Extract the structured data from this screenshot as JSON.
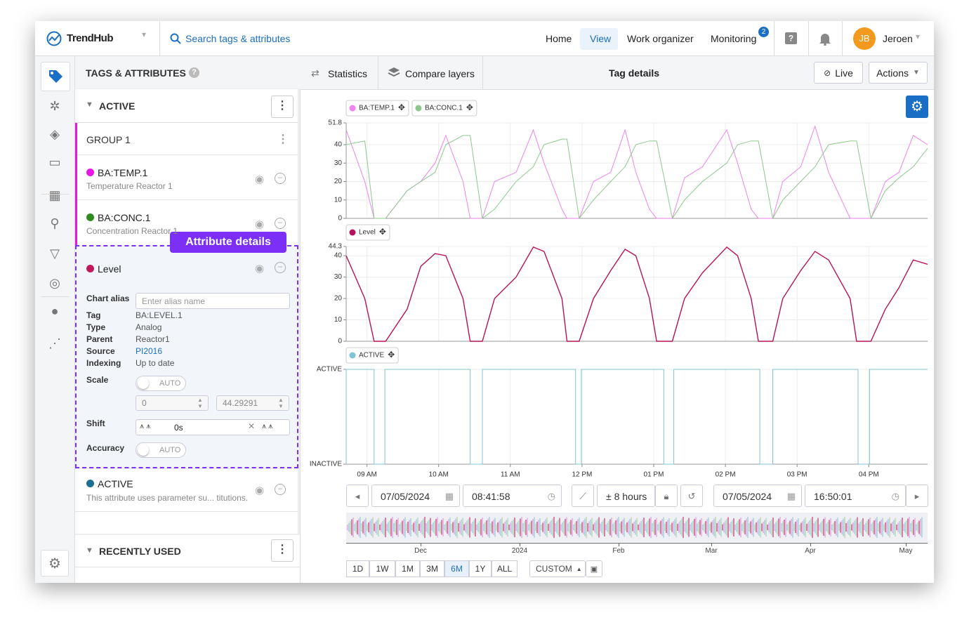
{
  "header": {
    "logo": "TrendHub",
    "search": "Search tags & attributes",
    "nav": [
      "Home",
      "View",
      "Work organizer",
      "Monitoring"
    ],
    "selected_nav": 1,
    "monitoring_badge": 2,
    "avatar": "JB",
    "user": "Jeroen"
  },
  "panel": {
    "title": "TAGS & ATTRIBUTES",
    "active_section": "ACTIVE",
    "group": "GROUP 1",
    "items": [
      {
        "name": "BA:TEMP.1",
        "description": "Temperature Reactor 1",
        "color": "#e815e8"
      },
      {
        "name": "BA:CONC.1",
        "description": "Concentration Reactor 1",
        "color": "#2e8b1e"
      }
    ],
    "popover": "Attribute details",
    "level": {
      "name": "Level",
      "color": "#c2185b",
      "alias_label": "Chart alias",
      "alias_placeholder": "Enter alias name",
      "properties": [
        [
          "Tag",
          "BA:LEVEL.1"
        ],
        [
          "Type",
          "Analog"
        ],
        [
          "Parent",
          "Reactor1"
        ],
        [
          "Source",
          "PI2016"
        ],
        [
          "Indexing",
          "Up to date"
        ]
      ],
      "scale_label": "Scale",
      "scale_mode": "AUTO",
      "scale_min": 0,
      "scale_max": 44.29291,
      "shift_label": "Shift",
      "shift": "0s",
      "accuracy_label": "Accuracy",
      "accuracy_mode": "AUTO"
    },
    "active_item": {
      "name": "ACTIVE",
      "description": "This attribute uses parameter su... titutions.",
      "color": "#1a6f90"
    },
    "recent_section": "RECENTLY USED"
  },
  "toolbar": {
    "statistics": "Statistics",
    "compare": "Compare layers",
    "title": "Tag details",
    "live": "Live",
    "actions": "Actions"
  },
  "time": {
    "start_date": "07/05/2024",
    "start_time": "08:41:58",
    "span": "± 8 hours",
    "end_date": "07/05/2024",
    "end_time": "16:50:01"
  },
  "navigator": {
    "labels": [
      "Dec",
      "2024",
      "Feb",
      "Mar",
      "Apr",
      "May"
    ]
  },
  "ranges": [
    "1D",
    "1W",
    "1M",
    "3M",
    "6M",
    "1Y",
    "ALL"
  ],
  "selected_range": 4,
  "custom": "CUSTOM",
  "chart_data": [
    {
      "type": "line",
      "x": [
        8.71,
        8.97,
        9.1,
        9.26,
        9.56,
        9.75,
        9.95,
        10.1,
        10.34,
        10.44,
        10.61,
        10.78,
        11.08,
        11.32,
        11.47,
        11.72,
        11.79,
        11.96,
        12.16,
        12.4,
        12.6,
        12.75,
        12.94,
        13.04,
        13.26,
        13.43,
        13.68,
        14.02,
        14.17,
        14.36,
        14.46,
        14.66,
        14.8,
        15.05,
        15.25,
        15.44,
        15.74,
        15.83,
        16.03,
        16.23,
        16.42,
        16.62,
        16.82
      ],
      "xlim": [
        8.71,
        16.82
      ],
      "ylim": [
        0,
        51.8
      ],
      "yticks": [
        0,
        10,
        20,
        30,
        40,
        51.8
      ],
      "series": [
        {
          "name": "BA:TEMP.1",
          "color": "#ee82ee",
          "values": [
            48,
            20,
            0,
            0,
            15,
            20,
            30,
            45,
            20,
            0,
            0,
            20,
            25,
            48,
            30,
            5,
            0,
            0,
            20,
            25,
            48,
            25,
            5,
            0,
            0,
            22,
            28,
            48,
            30,
            5,
            0,
            0,
            20,
            28,
            50,
            25,
            0,
            0,
            0,
            20,
            25,
            45,
            40
          ]
        },
        {
          "name": "BA:CONC.1",
          "color": "#8cc88c",
          "values": [
            40,
            42,
            0,
            0,
            15,
            20,
            25,
            40,
            45,
            45,
            0,
            5,
            20,
            28,
            40,
            43,
            43,
            0,
            10,
            20,
            28,
            40,
            42,
            42,
            0,
            10,
            20,
            30,
            40,
            42,
            42,
            0,
            10,
            20,
            28,
            40,
            42,
            42,
            0,
            15,
            22,
            28,
            38
          ]
        }
      ]
    },
    {
      "type": "line",
      "x": [
        8.71,
        8.97,
        9.1,
        9.26,
        9.56,
        9.75,
        9.95,
        10.1,
        10.34,
        10.44,
        10.61,
        10.78,
        11.08,
        11.32,
        11.47,
        11.72,
        11.79,
        11.96,
        12.16,
        12.4,
        12.6,
        12.75,
        12.94,
        13.04,
        13.26,
        13.43,
        13.68,
        14.02,
        14.17,
        14.36,
        14.46,
        14.66,
        14.8,
        15.05,
        15.25,
        15.44,
        15.74,
        15.83,
        16.03,
        16.23,
        16.42,
        16.62,
        16.82
      ],
      "xlim": [
        8.71,
        16.82
      ],
      "ylim": [
        0,
        44.3
      ],
      "yticks": [
        0,
        10,
        20,
        30,
        40,
        44.3
      ],
      "series": [
        {
          "name": "Level",
          "color": "#b5145c",
          "values": [
            40,
            20,
            0,
            0,
            15,
            35,
            41,
            40,
            20,
            0,
            0,
            20,
            30,
            44,
            42,
            20,
            0,
            0,
            20,
            33,
            43,
            40,
            20,
            0,
            0,
            20,
            32,
            44,
            40,
            20,
            0,
            0,
            20,
            33,
            42,
            38,
            20,
            0,
            0,
            15,
            25,
            38,
            36
          ]
        }
      ]
    },
    {
      "type": "step",
      "x": [
        8.71,
        8.71,
        9.1,
        9.1,
        9.25,
        9.25,
        10.44,
        10.44,
        10.61,
        10.61,
        11.91,
        11.91,
        11.99,
        11.99,
        13.14,
        13.14,
        13.28,
        13.28,
        14.48,
        14.48,
        14.66,
        14.66,
        15.85,
        15.85,
        16.01,
        16.01,
        16.82
      ],
      "xlim": [
        8.71,
        16.82
      ],
      "xticks": [
        {
          "value": 9,
          "label": "09 AM"
        },
        {
          "value": 10,
          "label": "10 AM"
        },
        {
          "value": 11,
          "label": "11 AM"
        },
        {
          "value": 12,
          "label": "12 PM"
        },
        {
          "value": 13,
          "label": "01 PM"
        },
        {
          "value": 14,
          "label": "02 PM"
        },
        {
          "value": 15,
          "label": "03 PM"
        },
        {
          "value": 16,
          "label": "04 PM"
        }
      ],
      "ylim": [
        0,
        1
      ],
      "yticks": [
        {
          "value": 0,
          "label": "INACTIVE"
        },
        {
          "value": 1,
          "label": "ACTIVE"
        }
      ],
      "series": [
        {
          "name": "ACTIVE",
          "color": "#7fc4d4",
          "values": [
            0,
            1,
            1,
            0,
            0,
            1,
            1,
            0,
            0,
            1,
            1,
            0,
            0,
            1,
            1,
            0,
            0,
            1,
            1,
            0,
            0,
            1,
            1,
            0,
            0,
            1,
            1
          ]
        }
      ]
    }
  ]
}
